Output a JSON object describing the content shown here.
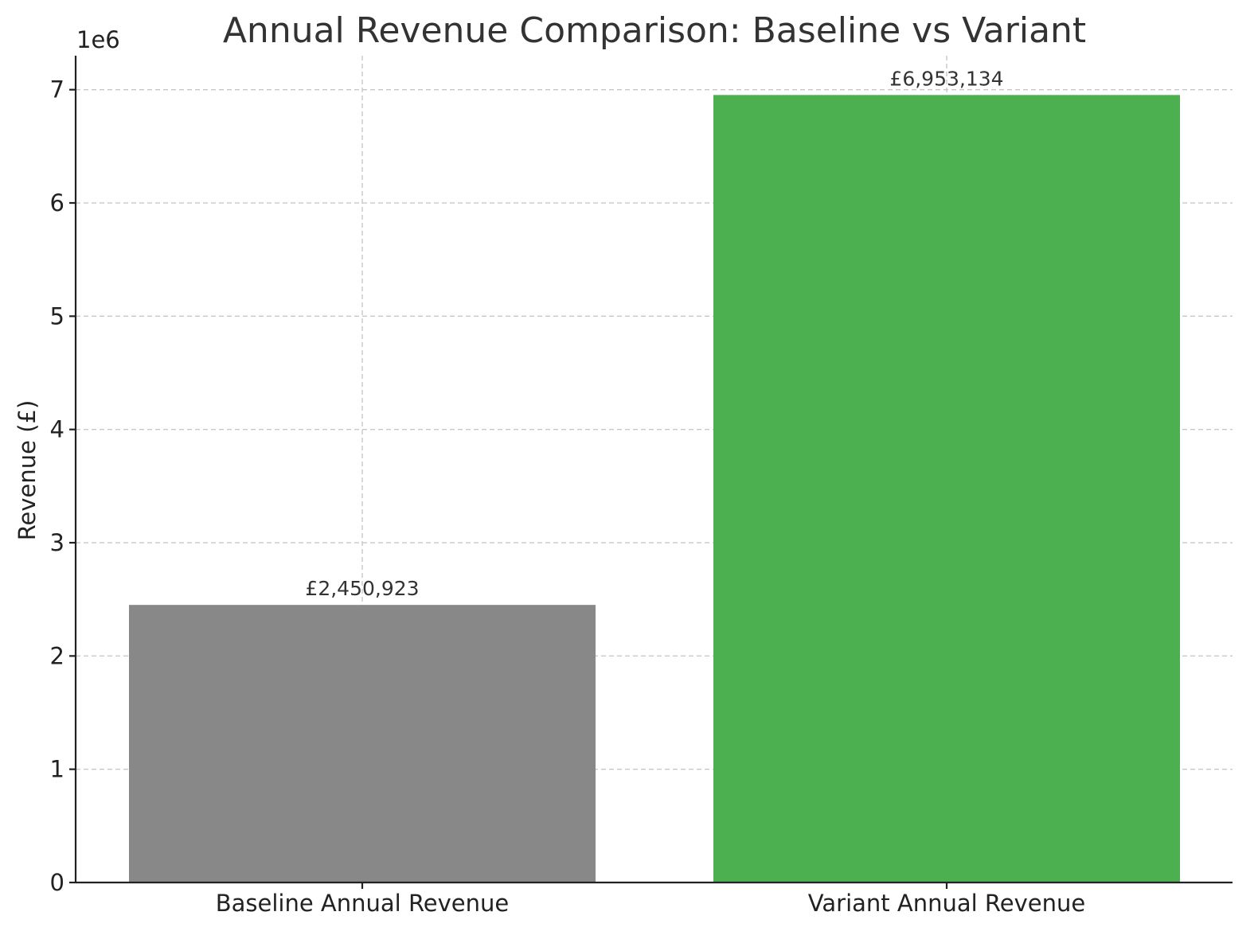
{
  "chart_data": {
    "type": "bar",
    "title": "Annual Revenue Comparison: Baseline vs Variant",
    "categories": [
      "Baseline Annual Revenue",
      "Variant Annual Revenue"
    ],
    "values": [
      2450923,
      6953134
    ],
    "value_labels": [
      "£2,450,923",
      "£6,953,134"
    ],
    "colors": [
      "#888888",
      "#4caf50"
    ],
    "xlabel": "",
    "ylabel": "Revenue (£)",
    "y_offset_label": "1e6",
    "ylim": [
      0,
      7300000
    ],
    "yticks": [
      0,
      1000000,
      2000000,
      3000000,
      4000000,
      5000000,
      6000000,
      7000000
    ],
    "ytick_labels": [
      "0",
      "1",
      "2",
      "3",
      "4",
      "5",
      "6",
      "7"
    ],
    "grid": true,
    "legend": "none"
  }
}
